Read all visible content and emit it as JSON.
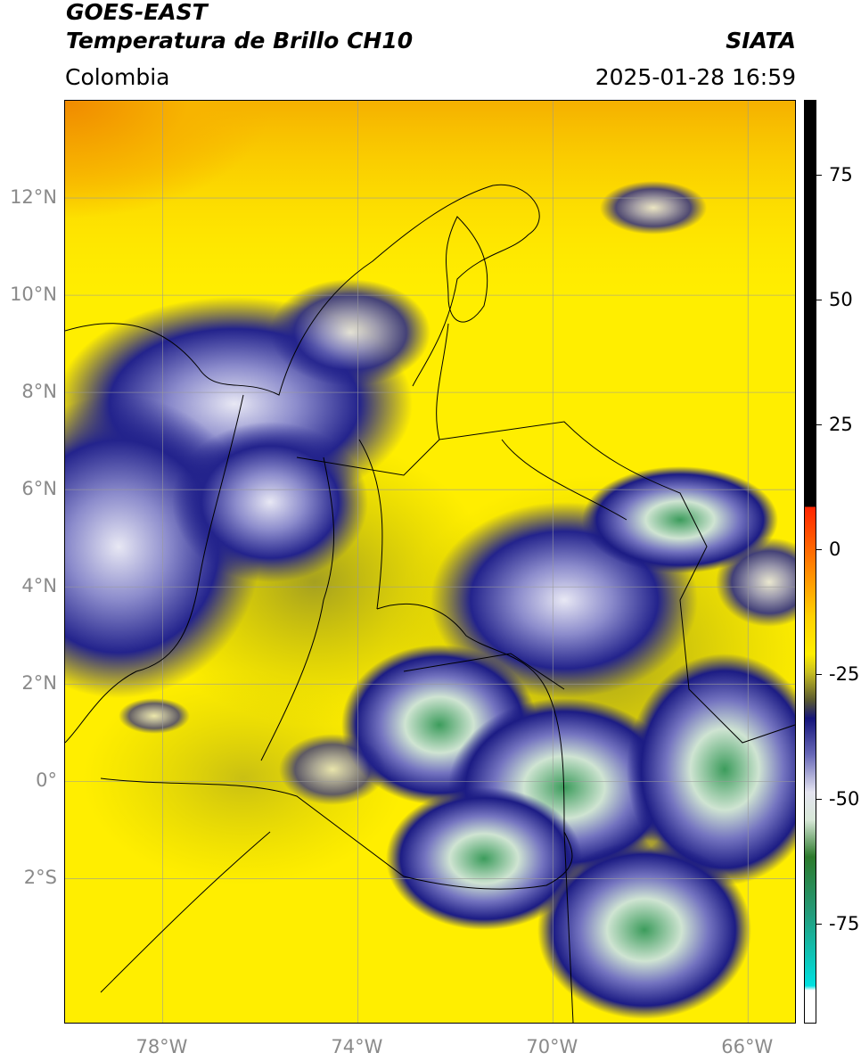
{
  "header": {
    "satellite": "GOES-EAST",
    "product": "Temperatura de Brillo CH10",
    "organization": "SIATA",
    "region": "Colombia",
    "timestamp": "2025-01-28 16:59"
  },
  "map": {
    "lat_labels": [
      "12°N",
      "10°N",
      "8°N",
      "6°N",
      "4°N",
      "2°N",
      "0°",
      "2°S"
    ],
    "lon_labels": [
      "78°W",
      "74°W",
      "70°W",
      "66°W"
    ],
    "lat_values": [
      12,
      10,
      8,
      6,
      4,
      2,
      0,
      -2
    ],
    "lon_values": [
      -78,
      -74,
      -70,
      -66
    ],
    "extent": {
      "lon_min": -80,
      "lon_max": -65,
      "lat_min": -5,
      "lat_max": 14
    },
    "colors": {
      "background_warm": "#ffee00",
      "warm_land": "#f5e600",
      "cold_cloud": "#1a1a80",
      "coldest": "#3a9a5a",
      "grid": "#9a9a9a",
      "borders": "#000000"
    }
  },
  "colorbar": {
    "labels": [
      "75",
      "50",
      "25",
      "0",
      "-25",
      "-50",
      "-75"
    ],
    "values": [
      75,
      50,
      25,
      0,
      -25,
      -50,
      -75
    ],
    "range": [
      -95,
      90
    ]
  }
}
